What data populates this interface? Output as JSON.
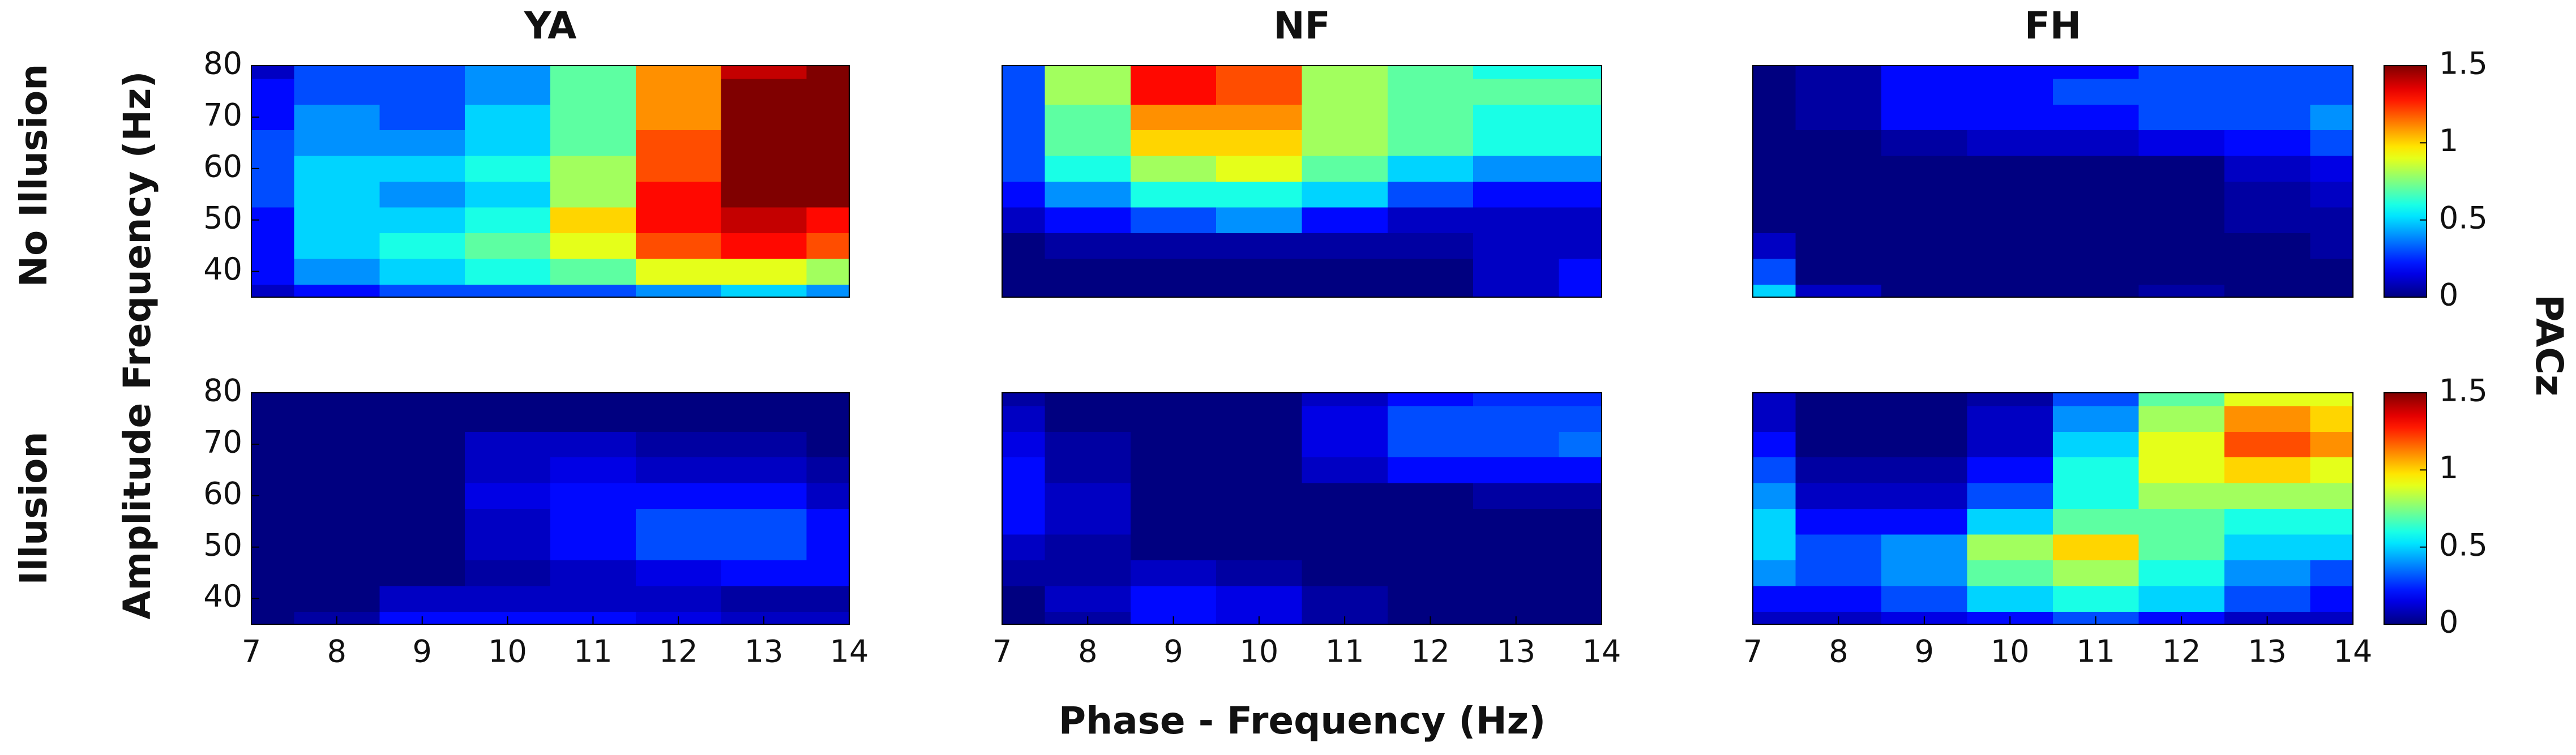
{
  "chart_data": [
    {
      "type": "heatmap",
      "title": "YA",
      "x": [
        7,
        8,
        9,
        10,
        11,
        12,
        13,
        14
      ],
      "y": [
        35,
        40,
        45,
        50,
        55,
        60,
        65,
        70,
        75,
        80
      ],
      "xlim": [
        7,
        14
      ],
      "ylim": [
        35,
        80
      ],
      "yticks": [
        40,
        50,
        60,
        70,
        80
      ],
      "values": [
        [
          0.1,
          0.2,
          0.3,
          0.3,
          0.3,
          0.4,
          0.5,
          0.4
        ],
        [
          0.2,
          0.4,
          0.5,
          0.6,
          0.7,
          0.9,
          0.9,
          0.8
        ],
        [
          0.2,
          0.5,
          0.6,
          0.7,
          0.9,
          1.2,
          1.3,
          1.2
        ],
        [
          0.2,
          0.5,
          0.5,
          0.6,
          1.0,
          1.3,
          1.4,
          1.3
        ],
        [
          0.3,
          0.5,
          0.4,
          0.5,
          0.8,
          1.3,
          1.5,
          1.5
        ],
        [
          0.3,
          0.5,
          0.5,
          0.6,
          0.8,
          1.2,
          1.5,
          1.6
        ],
        [
          0.3,
          0.4,
          0.4,
          0.5,
          0.7,
          1.2,
          1.5,
          1.6
        ],
        [
          0.2,
          0.4,
          0.3,
          0.5,
          0.7,
          1.1,
          1.5,
          1.6
        ],
        [
          0.2,
          0.3,
          0.3,
          0.4,
          0.7,
          1.1,
          1.5,
          1.6
        ],
        [
          0.1,
          0.3,
          0.3,
          0.4,
          0.7,
          1.1,
          1.4,
          1.6
        ]
      ]
    },
    {
      "type": "heatmap",
      "title": "NF",
      "x": [
        7,
        8,
        9,
        10,
        11,
        12,
        13,
        14
      ],
      "y": [
        35,
        40,
        45,
        50,
        55,
        60,
        65,
        70,
        75,
        80
      ],
      "xlim": [
        7,
        14
      ],
      "ylim": [
        35,
        80
      ],
      "values": [
        [
          0,
          0,
          0,
          0,
          0,
          0,
          0.1,
          0.2
        ],
        [
          0,
          0,
          0,
          0,
          0,
          0,
          0.1,
          0.2
        ],
        [
          0,
          0.05,
          0.05,
          0.05,
          0.05,
          0.05,
          0.1,
          0.1
        ],
        [
          0.1,
          0.2,
          0.3,
          0.4,
          0.2,
          0.1,
          0.1,
          0.1
        ],
        [
          0.2,
          0.4,
          0.6,
          0.6,
          0.5,
          0.3,
          0.2,
          0.2
        ],
        [
          0.3,
          0.6,
          0.8,
          0.9,
          0.7,
          0.5,
          0.4,
          0.4
        ],
        [
          0.3,
          0.7,
          1.0,
          1.0,
          0.8,
          0.7,
          0.6,
          0.6
        ],
        [
          0.3,
          0.7,
          1.1,
          1.1,
          0.8,
          0.7,
          0.6,
          0.6
        ],
        [
          0.3,
          0.8,
          1.3,
          1.2,
          0.8,
          0.7,
          0.7,
          0.7
        ],
        [
          0.3,
          0.8,
          1.3,
          1.2,
          0.8,
          0.7,
          0.6,
          0.6
        ]
      ]
    },
    {
      "type": "heatmap",
      "title": "FH",
      "x": [
        7,
        8,
        9,
        10,
        11,
        12,
        13,
        14
      ],
      "y": [
        35,
        40,
        45,
        50,
        55,
        60,
        65,
        70,
        75,
        80
      ],
      "xlim": [
        7,
        14
      ],
      "ylim": [
        35,
        80
      ],
      "colorbar": true,
      "values": [
        [
          0.5,
          0.1,
          0,
          0,
          0,
          0.05,
          0,
          0
        ],
        [
          0.3,
          0,
          0,
          0,
          0,
          0,
          0,
          0
        ],
        [
          0.1,
          0,
          0,
          0,
          0,
          0,
          0,
          0.05
        ],
        [
          0,
          0,
          0,
          0,
          0,
          0,
          0.05,
          0.05
        ],
        [
          0,
          0,
          0,
          0,
          0,
          0,
          0.05,
          0.1
        ],
        [
          0,
          0,
          0,
          0,
          0,
          0,
          0.1,
          0.15
        ],
        [
          0,
          0,
          0.05,
          0.1,
          0.1,
          0.15,
          0.2,
          0.3
        ],
        [
          0,
          0.05,
          0.2,
          0.2,
          0.2,
          0.3,
          0.3,
          0.4
        ],
        [
          0,
          0.05,
          0.2,
          0.2,
          0.3,
          0.3,
          0.3,
          0.3
        ],
        [
          0,
          0.05,
          0.2,
          0.2,
          0.2,
          0.3,
          0.3,
          0.3
        ]
      ]
    },
    {
      "type": "heatmap",
      "x": [
        7,
        8,
        9,
        10,
        11,
        12,
        13,
        14
      ],
      "y": [
        35,
        40,
        45,
        50,
        55,
        60,
        65,
        70,
        75,
        80
      ],
      "xlim": [
        7,
        14
      ],
      "ylim": [
        35,
        80
      ],
      "xticks": [
        7,
        8,
        9,
        10,
        11,
        12,
        13,
        14
      ],
      "yticks": [
        40,
        50,
        60,
        70,
        80
      ],
      "values": [
        [
          0,
          0.05,
          0.2,
          0.2,
          0.2,
          0.15,
          0.1,
          0.1
        ],
        [
          0,
          0,
          0.1,
          0.1,
          0.1,
          0.1,
          0.05,
          0.05
        ],
        [
          0,
          0,
          0,
          0.05,
          0.1,
          0.15,
          0.2,
          0.2
        ],
        [
          0,
          0,
          0,
          0.1,
          0.2,
          0.3,
          0.3,
          0.2
        ],
        [
          0,
          0,
          0,
          0.1,
          0.2,
          0.3,
          0.3,
          0.2
        ],
        [
          0,
          0,
          0,
          0.15,
          0.2,
          0.2,
          0.2,
          0.1
        ],
        [
          0,
          0,
          0,
          0.1,
          0.15,
          0.1,
          0.1,
          0.05
        ],
        [
          0,
          0,
          0,
          0.1,
          0.1,
          0.05,
          0.05,
          0
        ],
        [
          0,
          0,
          0,
          0,
          0,
          0,
          0,
          0
        ],
        [
          0,
          0,
          0,
          0,
          0,
          0,
          0,
          0
        ]
      ]
    },
    {
      "type": "heatmap",
      "x": [
        7,
        8,
        9,
        10,
        11,
        12,
        13,
        14
      ],
      "y": [
        35,
        40,
        45,
        50,
        55,
        60,
        65,
        70,
        75,
        80
      ],
      "xlim": [
        7,
        14
      ],
      "ylim": [
        35,
        80
      ],
      "xticks": [
        7,
        8,
        9,
        10,
        11,
        12,
        13,
        14
      ],
      "values": [
        [
          0,
          0.05,
          0.2,
          0.15,
          0.05,
          0,
          0,
          0
        ],
        [
          0,
          0.1,
          0.2,
          0.15,
          0.05,
          0,
          0,
          0
        ],
        [
          0.05,
          0.05,
          0.1,
          0.05,
          0,
          0,
          0,
          0
        ],
        [
          0.1,
          0.05,
          0,
          0,
          0,
          0,
          0,
          0
        ],
        [
          0.2,
          0.1,
          0,
          0,
          0,
          0,
          0,
          0
        ],
        [
          0.2,
          0.1,
          0,
          0,
          0,
          0,
          0.05,
          0.05
        ],
        [
          0.2,
          0.05,
          0,
          0,
          0.1,
          0.2,
          0.2,
          0.2
        ],
        [
          0.15,
          0.05,
          0,
          0,
          0.15,
          0.3,
          0.3,
          0.35
        ],
        [
          0.1,
          0,
          0,
          0,
          0.15,
          0.3,
          0.3,
          0.3
        ],
        [
          0.05,
          0,
          0,
          0,
          0.1,
          0.2,
          0.25,
          0.25
        ]
      ]
    },
    {
      "type": "heatmap",
      "x": [
        7,
        8,
        9,
        10,
        11,
        12,
        13,
        14
      ],
      "y": [
        35,
        40,
        45,
        50,
        55,
        60,
        65,
        70,
        75,
        80
      ],
      "xlim": [
        7,
        14
      ],
      "ylim": [
        35,
        80
      ],
      "xticks": [
        7,
        8,
        9,
        10,
        11,
        12,
        13,
        14
      ],
      "colorbar": true,
      "values": [
        [
          0.1,
          0.1,
          0.15,
          0.2,
          0.3,
          0.2,
          0.1,
          0.1
        ],
        [
          0.2,
          0.2,
          0.3,
          0.5,
          0.6,
          0.5,
          0.3,
          0.2
        ],
        [
          0.4,
          0.3,
          0.4,
          0.7,
          0.8,
          0.6,
          0.4,
          0.3
        ],
        [
          0.5,
          0.3,
          0.4,
          0.8,
          1.0,
          0.7,
          0.5,
          0.5
        ],
        [
          0.5,
          0.2,
          0.2,
          0.5,
          0.7,
          0.7,
          0.6,
          0.6
        ],
        [
          0.4,
          0.1,
          0.1,
          0.3,
          0.6,
          0.8,
          0.8,
          0.8
        ],
        [
          0.3,
          0.05,
          0.05,
          0.2,
          0.6,
          0.9,
          1.0,
          0.9
        ],
        [
          0.2,
          0,
          0,
          0.1,
          0.5,
          0.9,
          1.2,
          1.1
        ],
        [
          0.1,
          0,
          0,
          0.1,
          0.4,
          0.8,
          1.1,
          1.0
        ],
        [
          0.1,
          0,
          0,
          0.05,
          0.3,
          0.7,
          0.9,
          0.9
        ]
      ]
    }
  ],
  "row_labels": [
    "No Illusion",
    "Illusion"
  ],
  "ylabel": "Amplitude Frequency (Hz)",
  "xlabel": "Phase - Frequency (Hz)",
  "colorbar": {
    "label": "PACz",
    "clim": [
      0,
      1.5
    ],
    "ticks": [
      0,
      0.5,
      1,
      1.5
    ],
    "colormap": "jet"
  }
}
